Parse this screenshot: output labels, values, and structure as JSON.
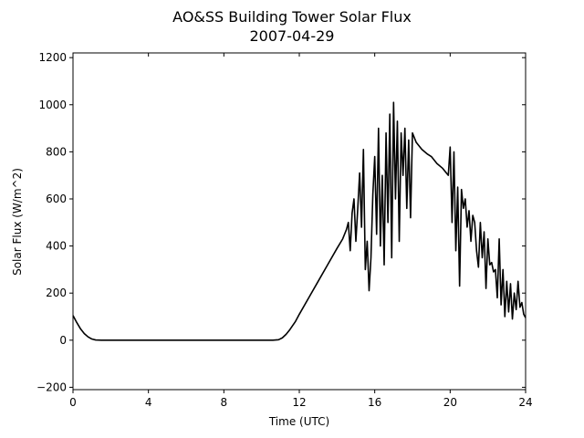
{
  "chart_data": {
    "type": "line",
    "title": "AO&SS Building Tower Solar Flux",
    "subtitle": "2007-04-29",
    "xlabel": "Time (UTC)",
    "ylabel": "Solar Flux (W/m^2)",
    "xlim": [
      0,
      24
    ],
    "ylim": [
      -210,
      1220
    ],
    "xticks": [
      0,
      4,
      8,
      12,
      16,
      20,
      24
    ],
    "yticks": [
      -200,
      0,
      200,
      400,
      600,
      800,
      1000,
      1200
    ],
    "xtick_labels": [
      "0",
      "4",
      "8",
      "12",
      "16",
      "20",
      "24"
    ],
    "ytick_labels": [
      "−200",
      "0",
      "200",
      "400",
      "600",
      "800",
      "1000",
      "1200"
    ],
    "grid": false,
    "legend": "none",
    "series": [
      {
        "color": "#000000",
        "x": [
          0,
          0.2,
          0.4,
          0.6,
          0.8,
          1.0,
          1.2,
          1.5,
          2,
          4,
          6,
          8,
          10,
          10.6,
          10.9,
          11.1,
          11.3,
          11.5,
          11.8,
          12.0,
          12.5,
          13.0,
          13.5,
          14.0,
          14.3,
          14.5,
          14.6,
          14.7,
          14.8,
          14.9,
          15.0,
          15.1,
          15.2,
          15.3,
          15.4,
          15.5,
          15.6,
          15.7,
          15.8,
          15.9,
          16.0,
          16.1,
          16.2,
          16.3,
          16.4,
          16.5,
          16.6,
          16.7,
          16.8,
          16.9,
          17.0,
          17.1,
          17.2,
          17.3,
          17.4,
          17.5,
          17.6,
          17.7,
          17.8,
          17.9,
          18.0,
          18.2,
          18.5,
          18.8,
          19.0,
          19.3,
          19.6,
          19.9,
          20.0,
          20.1,
          20.2,
          20.3,
          20.4,
          20.5,
          20.6,
          20.7,
          20.8,
          20.9,
          21.0,
          21.1,
          21.2,
          21.3,
          21.4,
          21.5,
          21.6,
          21.7,
          21.8,
          21.9,
          22.0,
          22.1,
          22.2,
          22.3,
          22.4,
          22.5,
          22.6,
          22.7,
          22.8,
          22.9,
          23.0,
          23.1,
          23.2,
          23.3,
          23.4,
          23.5,
          23.6,
          23.7,
          23.8,
          23.9,
          24.0
        ],
        "y": [
          105,
          75,
          48,
          28,
          14,
          5,
          1,
          0,
          0,
          0,
          0,
          0,
          0,
          0,
          2,
          10,
          25,
          45,
          80,
          110,
          180,
          250,
          320,
          390,
          430,
          470,
          500,
          380,
          540,
          600,
          420,
          560,
          710,
          480,
          810,
          300,
          420,
          210,
          350,
          620,
          780,
          450,
          900,
          400,
          700,
          320,
          880,
          500,
          960,
          350,
          1010,
          600,
          930,
          420,
          880,
          700,
          900,
          560,
          850,
          520,
          880,
          840,
          810,
          790,
          780,
          750,
          730,
          700,
          820,
          500,
          800,
          380,
          650,
          230,
          640,
          560,
          600,
          480,
          550,
          420,
          530,
          500,
          380,
          310,
          500,
          350,
          460,
          220,
          430,
          320,
          330,
          290,
          300,
          180,
          430,
          150,
          300,
          100,
          250,
          120,
          240,
          90,
          200,
          130,
          250,
          140,
          160,
          110,
          95
        ]
      }
    ]
  }
}
